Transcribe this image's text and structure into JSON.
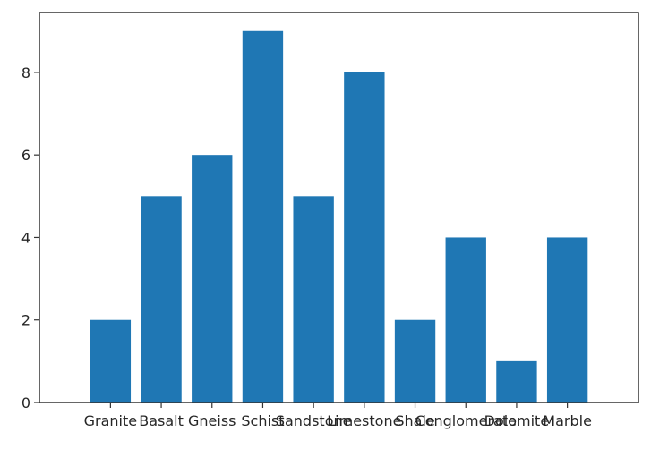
{
  "chart_data": {
    "type": "bar",
    "title": "",
    "xlabel": "",
    "ylabel": "",
    "categories": [
      "Granite",
      "Basalt",
      "Gneiss",
      "Schist",
      "Sandstone",
      "Limestone",
      "Shale",
      "Conglomerate",
      "Dolomite",
      "Marble"
    ],
    "values": [
      2,
      5,
      6,
      9,
      5,
      8,
      2,
      4,
      1,
      4
    ],
    "ylim": [
      0,
      9.45
    ],
    "yticks": [
      0,
      2,
      4,
      6,
      8
    ],
    "grid": false,
    "bar_color": "#1f77b4"
  }
}
